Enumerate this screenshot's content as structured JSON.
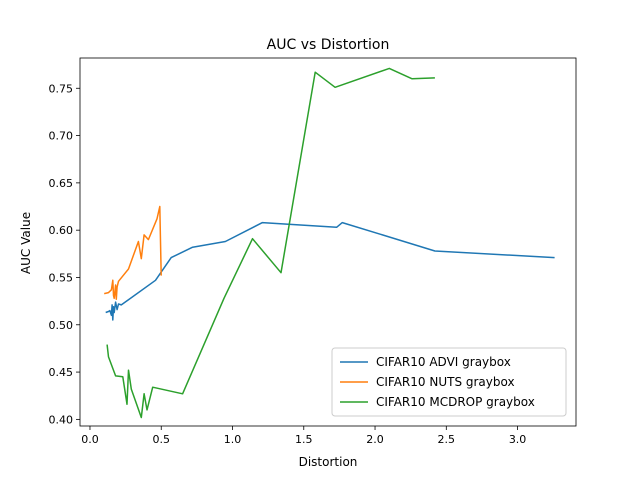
{
  "chart_data": {
    "type": "line",
    "title": "AUC vs Distortion",
    "xlabel": "Distortion",
    "ylabel": "AUC Value",
    "xlim": [
      -0.07,
      3.41
    ],
    "ylim": [
      0.393,
      0.782
    ],
    "xticks": [
      0.0,
      0.5,
      1.0,
      1.5,
      2.0,
      2.5,
      3.0
    ],
    "xtick_labels": [
      "0.0",
      "0.5",
      "1.0",
      "1.5",
      "2.0",
      "2.5",
      "3.0"
    ],
    "yticks": [
      0.4,
      0.45,
      0.5,
      0.55,
      0.6,
      0.65,
      0.7,
      0.75
    ],
    "ytick_labels": [
      "0.40",
      "0.45",
      "0.50",
      "0.55",
      "0.60",
      "0.65",
      "0.70",
      "0.75"
    ],
    "grid": false,
    "legend_position": "bottom-right",
    "series": [
      {
        "name": "CIFAR10 ADVI graybox",
        "color": "#1f77b4",
        "x": [
          0.11,
          0.13,
          0.14,
          0.15,
          0.155,
          0.16,
          0.165,
          0.17,
          0.18,
          0.19,
          0.2,
          0.22,
          0.46,
          0.57,
          0.72,
          0.95,
          1.21,
          1.73,
          1.77,
          2.42,
          3.26
        ],
        "y": [
          0.513,
          0.514,
          0.515,
          0.51,
          0.521,
          0.505,
          0.519,
          0.513,
          0.524,
          0.516,
          0.522,
          0.521,
          0.547,
          0.571,
          0.582,
          0.588,
          0.608,
          0.603,
          0.608,
          0.578,
          0.571
        ]
      },
      {
        "name": "CIFAR10 NUTS graybox",
        "color": "#ff7f0e",
        "x": [
          0.1,
          0.13,
          0.15,
          0.16,
          0.165,
          0.17,
          0.18,
          0.185,
          0.19,
          0.2,
          0.27,
          0.34,
          0.36,
          0.38,
          0.41,
          0.47,
          0.49,
          0.5
        ],
        "y": [
          0.533,
          0.534,
          0.537,
          0.547,
          0.531,
          0.528,
          0.542,
          0.527,
          0.54,
          0.546,
          0.559,
          0.588,
          0.57,
          0.595,
          0.59,
          0.612,
          0.625,
          0.552
        ]
      },
      {
        "name": "CIFAR10 MCDROP graybox",
        "color": "#2ca02c",
        "x": [
          0.12,
          0.13,
          0.18,
          0.23,
          0.26,
          0.27,
          0.29,
          0.36,
          0.38,
          0.4,
          0.44,
          0.65,
          0.94,
          1.14,
          1.34,
          1.58,
          1.72,
          2.1,
          2.26,
          2.42
        ],
        "y": [
          0.479,
          0.466,
          0.446,
          0.445,
          0.416,
          0.452,
          0.432,
          0.402,
          0.427,
          0.41,
          0.434,
          0.427,
          0.528,
          0.591,
          0.555,
          0.767,
          0.751,
          0.771,
          0.76,
          0.761
        ]
      }
    ]
  }
}
